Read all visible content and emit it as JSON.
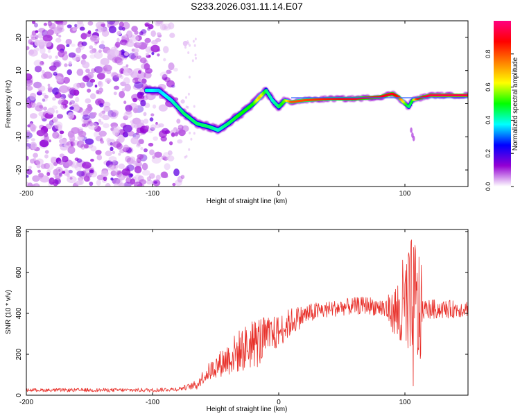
{
  "figure": {
    "title": "S233.2026.031.11.14.E07"
  },
  "chart_data": [
    {
      "type": "heatmap",
      "panel": "top",
      "title": "S233.2026.031.11.14.E07",
      "xlabel": "Height of straight line (km)",
      "ylabel": "Frequency (Hz)",
      "xlim": [
        -200,
        150
      ],
      "ylim": [
        -25,
        25
      ],
      "xticks": [
        -200,
        -100,
        0,
        100
      ],
      "yticks": [
        -20,
        -10,
        0,
        10,
        20
      ],
      "grid": false,
      "noise_region": {
        "x": [
          -200,
          -75
        ],
        "y": [
          -25,
          25
        ]
      },
      "ridge": {
        "x": [
          -105,
          -95,
          -85,
          -75,
          -65,
          -55,
          -48,
          -40,
          -30,
          -20,
          -15,
          -10,
          -5,
          0,
          5,
          10,
          20,
          40,
          60,
          80,
          90,
          95,
          100,
          103,
          106,
          110,
          120,
          140,
          150
        ],
        "y": [
          4,
          4,
          1,
          -3,
          -6,
          -7,
          -8,
          -6,
          -3,
          0,
          2,
          4,
          1,
          -1,
          1,
          0.5,
          1,
          1.5,
          1.5,
          2,
          3,
          2,
          0,
          -1,
          1,
          1.5,
          2.5,
          2.5,
          2.5
        ],
        "amplitude": [
          0.4,
          0.35,
          0.4,
          0.45,
          0.45,
          0.45,
          0.4,
          0.45,
          0.5,
          0.5,
          0.7,
          0.45,
          0.4,
          0.45,
          0.55,
          0.8,
          0.8,
          0.85,
          0.9,
          0.9,
          0.9,
          0.85,
          0.55,
          0.45,
          0.5,
          0.85,
          0.95,
          0.95,
          0.95
        ]
      },
      "colorbar": {
        "label": "Normalized spectral amplitude",
        "range": [
          0,
          1
        ],
        "ticks": [
          "0.0",
          "0.2",
          "0.4",
          "0.6",
          "0.8"
        ],
        "colors": [
          "#ffffff",
          "#9400d3",
          "#0000ff",
          "#00ffff",
          "#00ff00",
          "#ffff00",
          "#ff8000",
          "#ff0000",
          "#ff0080"
        ]
      }
    },
    {
      "type": "line",
      "panel": "bottom",
      "xlabel": "Height of straight line (km)",
      "ylabel": "SNR (10 * v/v)",
      "xlim": [
        -200,
        150
      ],
      "ylim": [
        0,
        810
      ],
      "xticks": [
        -200,
        -100,
        0,
        100
      ],
      "yticks": [
        0,
        200,
        400,
        600,
        800
      ],
      "grid": false,
      "series": [
        {
          "name": "SNR",
          "color": "#e8302a",
          "baseline": {
            "x": [
              -200,
              -100,
              -80,
              -65,
              -60,
              -50,
              -40,
              -30,
              -20,
              -10,
              0,
              10,
              20,
              30,
              50,
              70,
              80,
              90,
              95,
              100,
              105,
              110,
              115,
              120,
              130,
              140,
              150
            ],
            "y": [
              25,
              25,
              30,
              50,
              90,
              140,
              180,
              220,
              250,
              280,
              310,
              360,
              390,
              410,
              430,
              440,
              430,
              410,
              400,
              410,
              390,
              400,
              420,
              420,
              420,
              420,
              425
            ]
          },
          "envelope": {
            "x": [
              -200,
              -80,
              -70,
              -60,
              -50,
              -40,
              -30,
              -20,
              -15,
              -10,
              0,
              10,
              20,
              40,
              80,
              90,
              95,
              100,
              105,
              108,
              112,
              115,
              150
            ],
            "y": [
              8,
              10,
              15,
              35,
              55,
              85,
              110,
              120,
              130,
              100,
              80,
              70,
              50,
              40,
              45,
              90,
              200,
              300,
              380,
              400,
              300,
              50,
              40
            ]
          }
        }
      ]
    }
  ]
}
